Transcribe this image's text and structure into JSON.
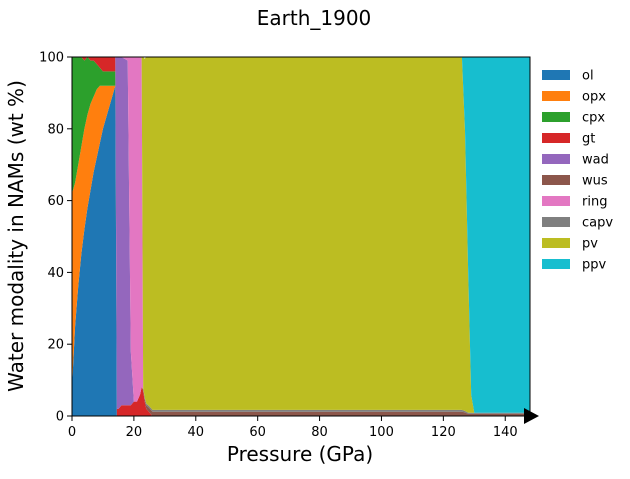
{
  "chart_data": {
    "type": "area",
    "title": "Earth_1900",
    "xlabel": "Pressure (GPa)",
    "ylabel": "Water modality in NAMs (wt %)",
    "xlim": [
      0,
      148
    ],
    "ylim": [
      0,
      100
    ],
    "x_ticks": [
      0,
      20,
      40,
      60,
      80,
      100,
      120,
      140
    ],
    "y_ticks": [
      0,
      20,
      40,
      60,
      80,
      100
    ],
    "grid": false,
    "legend_position": "right-outside-top",
    "x_axis_arrow": true,
    "x": [
      0,
      1,
      2,
      3,
      4,
      5,
      6,
      7,
      8,
      9,
      10,
      11,
      12,
      13,
      14,
      14.5,
      15,
      16,
      18,
      19,
      20,
      21,
      22,
      22.5,
      23,
      23.5,
      24,
      25,
      26,
      27,
      28,
      40,
      60,
      80,
      100,
      120,
      125,
      126,
      127,
      128,
      129,
      130,
      140,
      148
    ],
    "series": [
      {
        "name": "ol",
        "color": "#1f77b4",
        "values": [
          8,
          25,
          36,
          45,
          52,
          58,
          63,
          68,
          72,
          76,
          80,
          83,
          86,
          89,
          92,
          0,
          0,
          0,
          0,
          0,
          0,
          0,
          0,
          0,
          0,
          0,
          0,
          0,
          0,
          0,
          0,
          0,
          0,
          0,
          0,
          0,
          0,
          0,
          0,
          0,
          0,
          0,
          0,
          0
        ]
      },
      {
        "name": "opx",
        "color": "#ff7f0e",
        "values": [
          54,
          40,
          34,
          30,
          28,
          26,
          24,
          21,
          19,
          16,
          12,
          9,
          6,
          3,
          0,
          0,
          0,
          0,
          0,
          0,
          0,
          0,
          0,
          0,
          0,
          0,
          0,
          0,
          0,
          0,
          0,
          0,
          0,
          0,
          0,
          0,
          0,
          0,
          0,
          0,
          0,
          0,
          0,
          0
        ]
      },
      {
        "name": "cpx",
        "color": "#2ca02c",
        "values": [
          38,
          35,
          30,
          25,
          19,
          16,
          12,
          10,
          7,
          5,
          4,
          4,
          4,
          4,
          4,
          0,
          0,
          0,
          0,
          0,
          0,
          0,
          0,
          0,
          0,
          0,
          0,
          0,
          0,
          0,
          0,
          0,
          0,
          0,
          0,
          0,
          0,
          0,
          0,
          0,
          0,
          0,
          0,
          0
        ]
      },
      {
        "name": "gt",
        "color": "#d62728",
        "values": [
          0,
          0,
          0,
          0,
          1,
          0,
          1,
          1,
          2,
          3,
          4,
          4,
          4,
          4,
          4,
          2,
          2,
          3,
          3,
          3,
          4,
          4,
          6,
          8,
          7,
          4,
          2,
          1,
          0,
          0,
          0,
          0,
          0,
          0,
          0,
          0,
          0,
          0,
          0,
          0,
          0,
          0,
          0,
          0
        ]
      },
      {
        "name": "wad",
        "color": "#9467bd",
        "values": [
          0,
          0,
          0,
          0,
          0,
          0,
          0,
          0,
          0,
          0,
          0,
          0,
          0,
          0,
          0,
          98,
          98,
          97,
          96,
          15,
          0,
          0,
          0,
          0,
          0,
          0,
          0,
          0,
          0,
          0,
          0,
          0,
          0,
          0,
          0,
          0,
          0,
          0,
          0,
          0,
          0,
          0,
          0,
          0
        ]
      },
      {
        "name": "wus",
        "color": "#8c564b",
        "values": [
          0,
          0,
          0,
          0,
          0,
          0,
          0,
          0,
          0,
          0,
          0,
          0,
          0,
          0,
          0,
          0,
          0,
          0,
          0,
          0,
          0,
          0,
          0,
          0,
          0.5,
          0.8,
          1,
          1.2,
          1.2,
          1.2,
          1.2,
          1.2,
          1.2,
          1.2,
          1.2,
          1.2,
          1.2,
          1.2,
          1.0,
          0.6,
          0.6,
          0.6,
          0.6,
          0.6
        ]
      },
      {
        "name": "ring",
        "color": "#e377c2",
        "values": [
          0,
          0,
          0,
          0,
          0,
          0,
          0,
          0,
          0,
          0,
          0,
          0,
          0,
          0,
          0,
          0,
          0,
          0,
          1,
          82,
          96,
          96,
          94,
          92,
          0,
          0,
          0,
          0,
          0,
          0,
          0,
          0,
          0,
          0,
          0,
          0,
          0,
          0,
          0,
          0,
          0,
          0,
          0,
          0
        ]
      },
      {
        "name": "capv",
        "color": "#7f7f7f",
        "values": [
          0,
          0,
          0,
          0,
          0,
          0,
          0,
          0,
          0,
          0,
          0,
          0,
          0,
          0,
          0,
          0,
          0,
          0,
          0,
          0,
          0,
          0,
          0,
          0,
          0.3,
          0.4,
          0.5,
          0.5,
          0.5,
          0.5,
          0.5,
          0.5,
          0.5,
          0.5,
          0.5,
          0.5,
          0.5,
          0.5,
          0.4,
          0.3,
          0.3,
          0.3,
          0.3,
          0.3
        ]
      },
      {
        "name": "pv",
        "color": "#bcbd22",
        "values": [
          0,
          0,
          0,
          0,
          0,
          0,
          0,
          0,
          0,
          0,
          0,
          0,
          0,
          0,
          0,
          0,
          0,
          0,
          0,
          0,
          0,
          0,
          0,
          0,
          92.2,
          94.3,
          96.5,
          97.3,
          98.3,
          98.3,
          98.3,
          98.3,
          98.3,
          98.3,
          98.3,
          98.3,
          98.3,
          98.3,
          78,
          40,
          5,
          0,
          0,
          0
        ]
      },
      {
        "name": "ppv",
        "color": "#17becf",
        "values": [
          0,
          0,
          0,
          0,
          0,
          0,
          0,
          0,
          0,
          0,
          0,
          0,
          0,
          0,
          0,
          0,
          0,
          0,
          0,
          0,
          0,
          0,
          0,
          0,
          0,
          0,
          0,
          0,
          0,
          0,
          0,
          0,
          0,
          0,
          0,
          0,
          0,
          0,
          20.6,
          59.1,
          94.1,
          99.1,
          99.1,
          99.1
        ]
      }
    ]
  }
}
